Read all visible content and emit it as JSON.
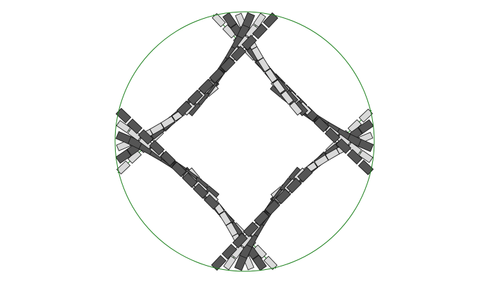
{
  "diagram": {
    "type": "circular-link-pattern",
    "boundary_circle_color": "#1a7f1a",
    "guide_curve_color": "#1a7f1a",
    "dark_link_color": "#555555",
    "light_link_color": "#d9d9d9",
    "link_outline_color": "#111111",
    "arms": 4,
    "strands_per_arm": 6,
    "links_per_strand": 9
  }
}
